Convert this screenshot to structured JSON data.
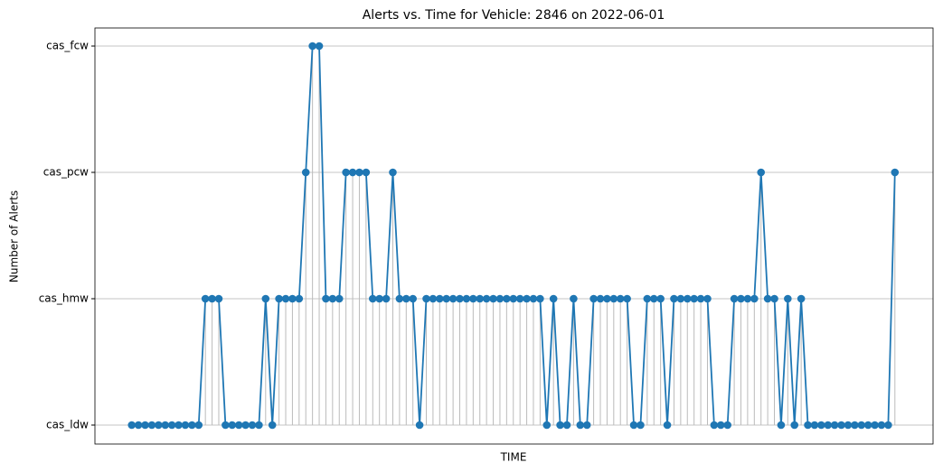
{
  "chart_data": {
    "type": "line",
    "title": "Alerts vs. Time for Vehicle: 2846 on 2022-06-01",
    "xlabel": "TIME",
    "ylabel": "Number of Alerts",
    "color": "#1f77b4",
    "stem_color": "#bbbbbb",
    "values": [
      0,
      0,
      0,
      0,
      0,
      0,
      0,
      0,
      0,
      0,
      0,
      1,
      1,
      1,
      0,
      0,
      0,
      0,
      0,
      0,
      1,
      0,
      1,
      1,
      1,
      1,
      2,
      3,
      3,
      1,
      1,
      1,
      2,
      2,
      2,
      2,
      1,
      1,
      1,
      2,
      1,
      1,
      1,
      0,
      1,
      1,
      1,
      1,
      1,
      1,
      1,
      1,
      1,
      1,
      1,
      1,
      1,
      1,
      1,
      1,
      1,
      1,
      0,
      1,
      0,
      0,
      1,
      0,
      0,
      1,
      1,
      1,
      1,
      1,
      1,
      0,
      0,
      1,
      1,
      1,
      0,
      1,
      1,
      1,
      1,
      1,
      1,
      0,
      0,
      0,
      1,
      1,
      1,
      1,
      2,
      1,
      1,
      0,
      1,
      0,
      1,
      0,
      0,
      0,
      0,
      0,
      0,
      0,
      0,
      0,
      0,
      0,
      0,
      0,
      2
    ],
    "xlim": [
      -5.5,
      119.7
    ],
    "ylim": [
      -0.15,
      3.143
    ],
    "yticks": [
      {
        "value": 0,
        "label": "cas_ldw"
      },
      {
        "value": 1,
        "label": "cas_hmw"
      },
      {
        "value": 2,
        "label": "cas_pcw"
      },
      {
        "value": 3,
        "label": "cas_fcw"
      }
    ],
    "grid": true
  }
}
